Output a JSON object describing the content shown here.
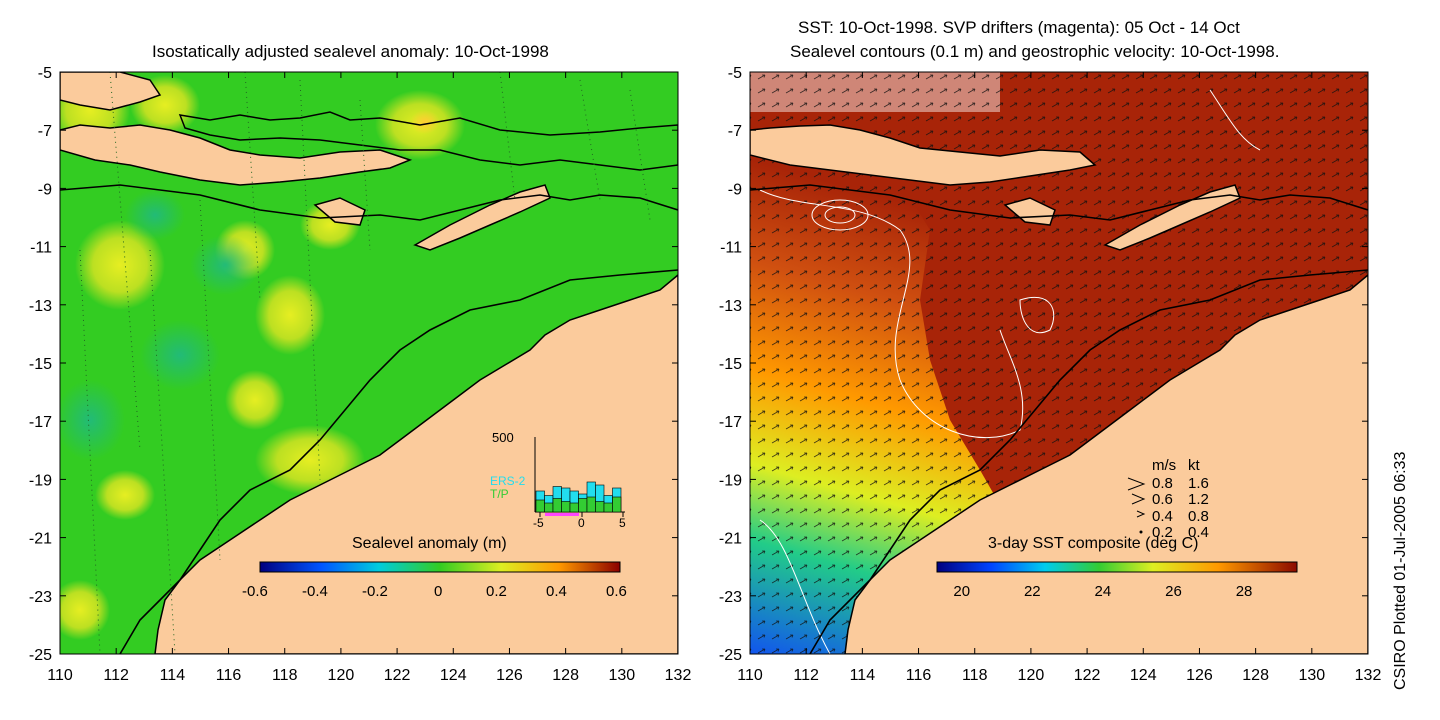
{
  "left_panel": {
    "title": "Isostatically adjusted sealevel anomaly: 10-Oct-1998",
    "x_ticks": [
      "110",
      "112",
      "114",
      "116",
      "118",
      "120",
      "122",
      "124",
      "126",
      "128",
      "130",
      "132"
    ],
    "y_ticks": [
      "-5",
      "-7",
      "-9",
      "-11",
      "-13",
      "-15",
      "-17",
      "-19",
      "-21",
      "-23",
      "-25"
    ],
    "colorbar": {
      "label": "Sealevel anomaly (m)",
      "ticks": [
        "-0.6",
        "-0.4",
        "-0.2",
        "0",
        "0.2",
        "0.4",
        "0.6"
      ],
      "range": [
        -0.6,
        0.6
      ]
    },
    "histogram": {
      "y_max_label": "500",
      "x_ticks": [
        "-5",
        "0",
        "5"
      ],
      "legend": [
        "ERS-2",
        "T/P"
      ],
      "ers2_color": "#22ddee",
      "tp_color": "#33cc33",
      "ers2_counts": [
        140,
        110,
        170,
        160,
        140,
        120,
        200,
        180,
        110,
        160
      ],
      "tp_counts": [
        80,
        60,
        90,
        70,
        60,
        90,
        100,
        70,
        60,
        100
      ]
    }
  },
  "right_panel": {
    "title_line1": "SST: 10-Oct-1998. SVP drifters (magenta): 05 Oct - 14 Oct",
    "title_line2": "Sealevel contours (0.1 m) and geostrophic velocity: 10-Oct-1998.",
    "x_ticks": [
      "110",
      "112",
      "114",
      "116",
      "118",
      "120",
      "122",
      "124",
      "126",
      "128",
      "130",
      "132"
    ],
    "y_ticks": [
      "-5",
      "-7",
      "-9",
      "-11",
      "-13",
      "-15",
      "-17",
      "-19",
      "-21",
      "-23",
      "-25"
    ],
    "colorbar": {
      "label": "3-day SST composite (deg C)",
      "ticks": [
        "20",
        "22",
        "24",
        "26",
        "28"
      ],
      "range": [
        19.3,
        29.5
      ]
    },
    "velocity_key": {
      "headers": [
        "m/s",
        "kt"
      ],
      "rows": [
        [
          "0.8",
          "1.6"
        ],
        [
          "0.6",
          "1.2"
        ],
        [
          "0.4",
          "0.8"
        ],
        [
          "0.2",
          "0.4"
        ]
      ]
    }
  },
  "credit": "CSIRO Plotted 01-Jul-2005 06:33",
  "colors": {
    "land": "#fbcb9c",
    "ocean_green": "#33cc22",
    "sst_warm": "#a82408"
  }
}
